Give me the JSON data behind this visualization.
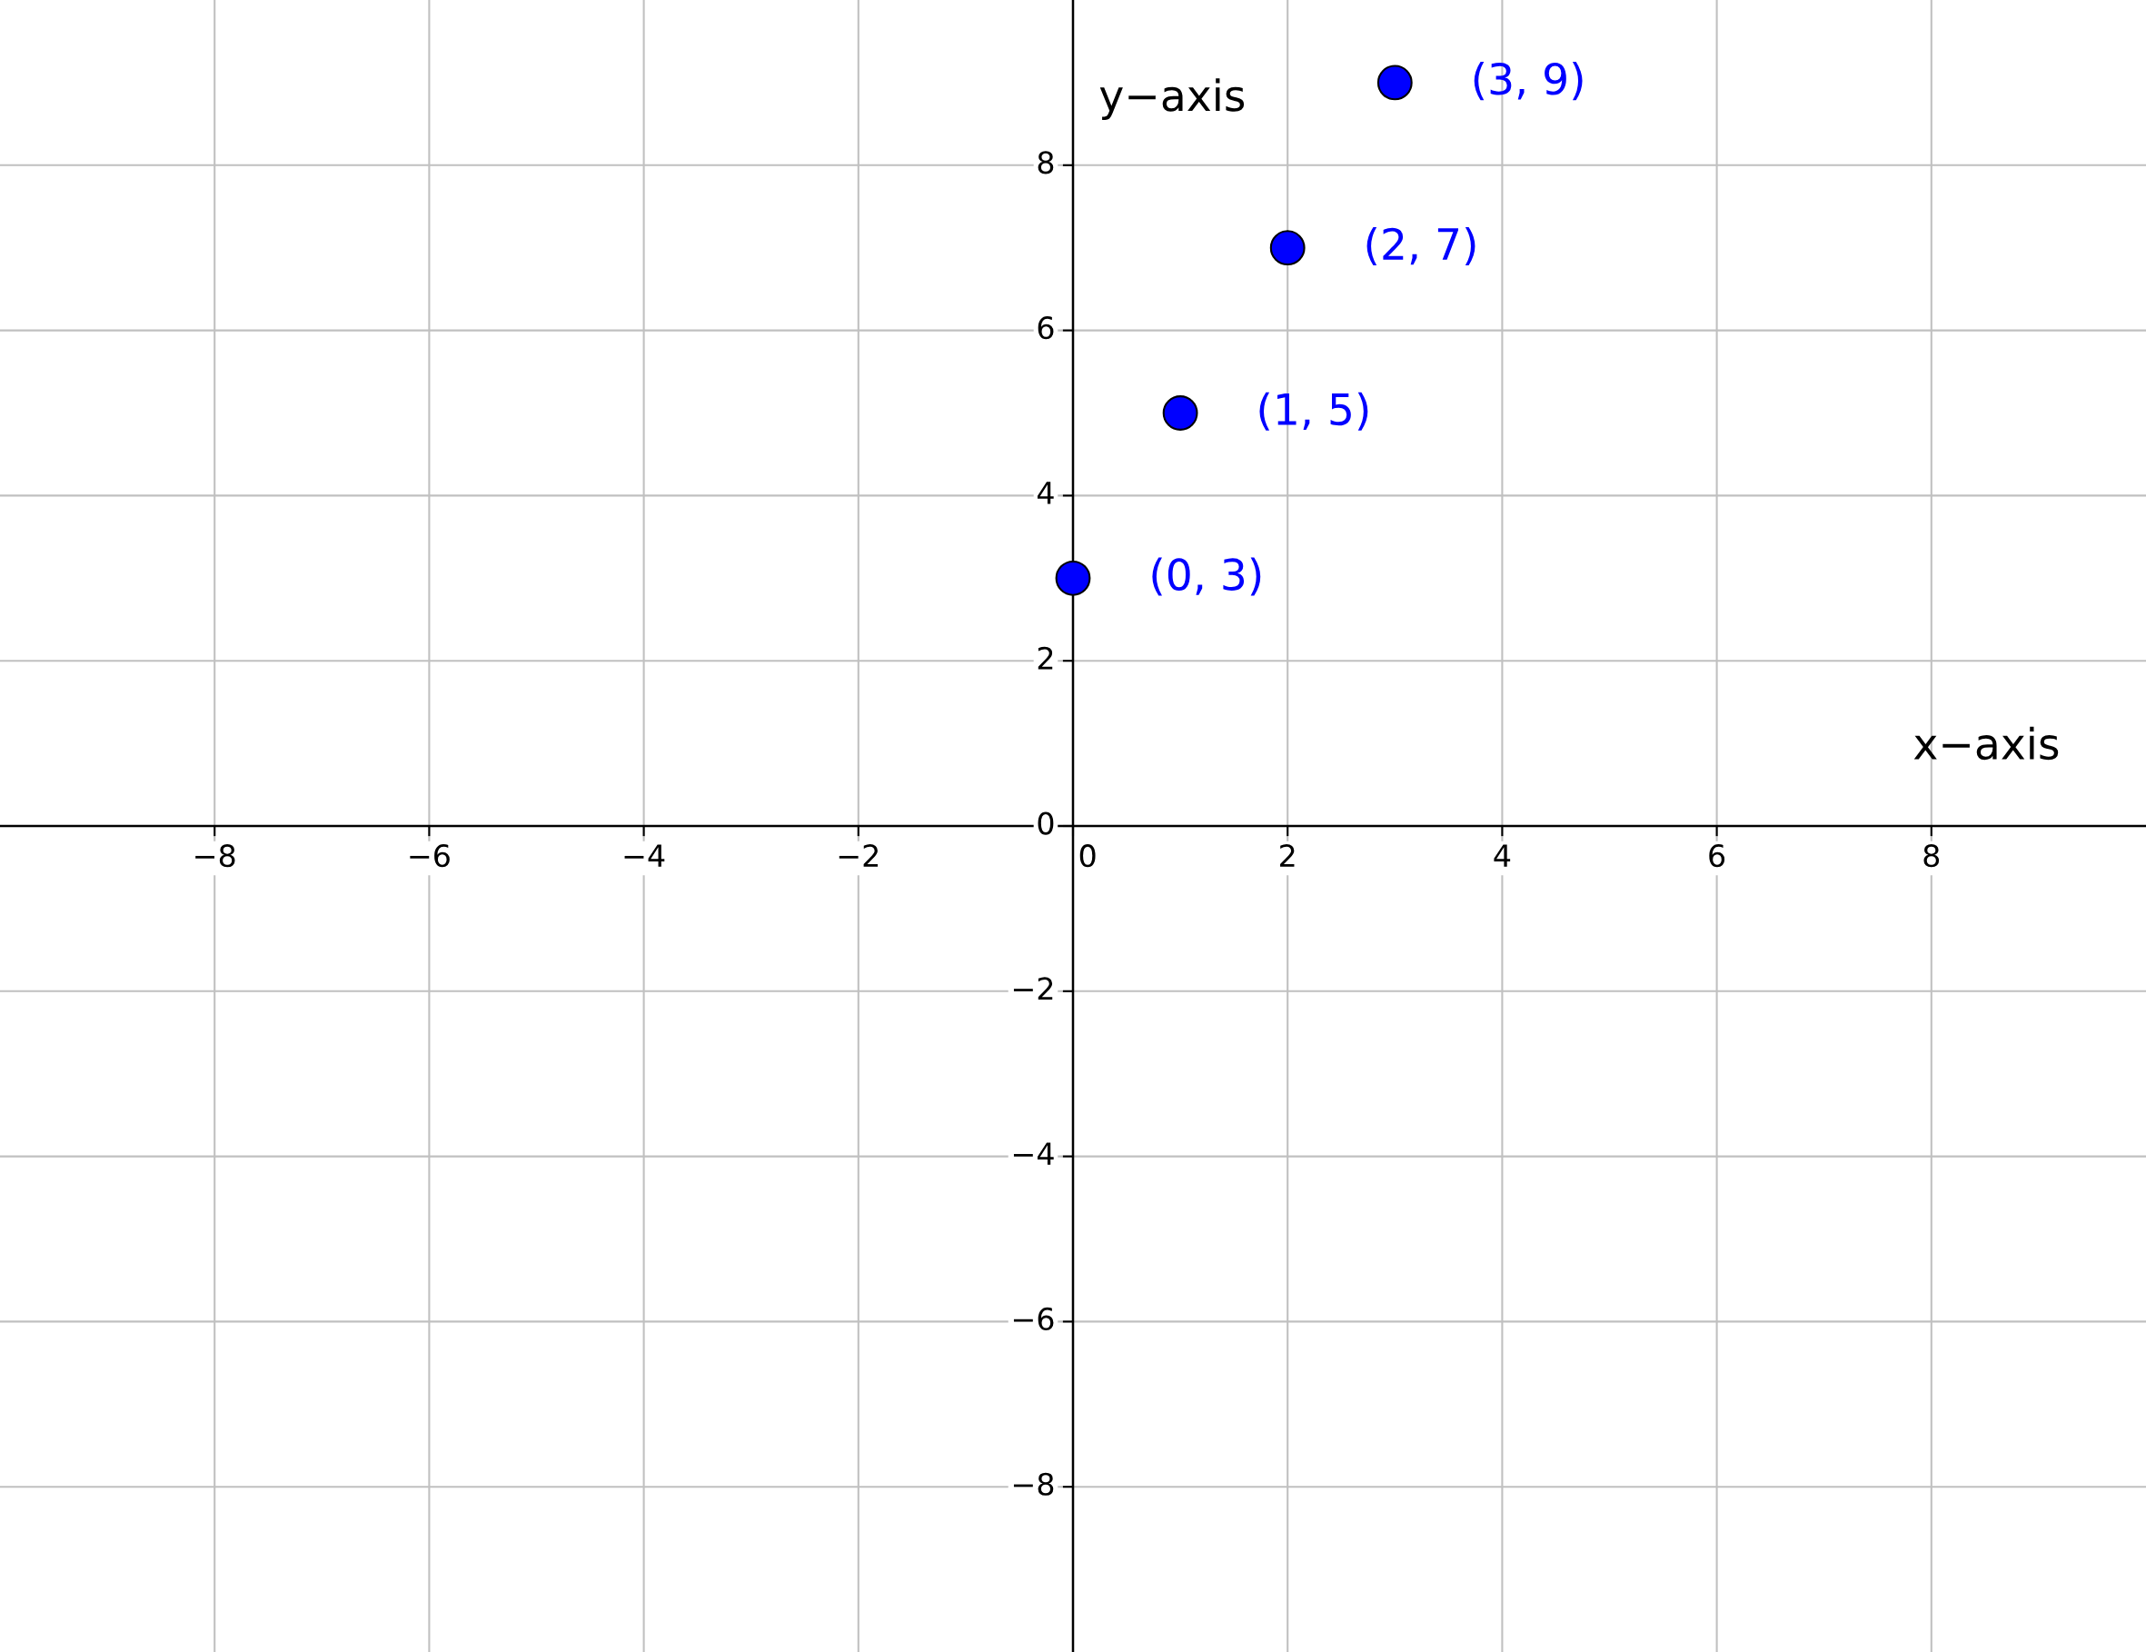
{
  "chart_data": {
    "type": "scatter",
    "xlabel": "x−axis",
    "ylabel": "y−axis",
    "x": [
      0,
      1,
      2,
      3
    ],
    "series": [
      {
        "color": "#0000ff",
        "values": [
          3,
          5,
          7,
          9
        ]
      }
    ],
    "annotations": [
      {
        "text": "(0, 3)",
        "x": 0,
        "y": 3
      },
      {
        "text": "(1, 5)",
        "x": 1,
        "y": 5
      },
      {
        "text": "(2, 7)",
        "x": 2,
        "y": 7
      },
      {
        "text": "(3, 9)",
        "x": 3,
        "y": 9
      }
    ],
    "xlim": [
      -10,
      10
    ],
    "ylim": [
      -10,
      10
    ],
    "xticks": [
      {
        "value": -8,
        "label": "−8"
      },
      {
        "value": -6,
        "label": "−6"
      },
      {
        "value": -4,
        "label": "−4"
      },
      {
        "value": -2,
        "label": "−2"
      },
      0,
      2,
      4,
      6,
      8
    ],
    "yticks": [
      {
        "value": -8,
        "label": "−8"
      },
      {
        "value": -6,
        "label": "−6"
      },
      {
        "value": -4,
        "label": "−4"
      },
      {
        "value": -2,
        "label": "−2"
      },
      0,
      2,
      4,
      6,
      8
    ],
    "grid": true,
    "marker": "circle"
  }
}
